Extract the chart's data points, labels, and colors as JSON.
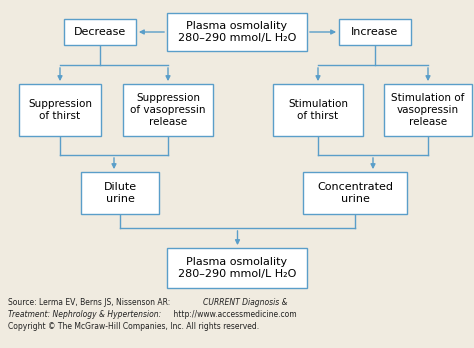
{
  "bg_color": "#f0ebe0",
  "box_color": "#ffffff",
  "box_edge_color": "#5a9ec9",
  "arrow_color": "#5a9ec9",
  "text_color": "#000000",
  "source_line1": "Source: Lerma EV, Berns JS, Nissenson AR: ",
  "source_line1_italic": "CURRENT Diagnosis &",
  "source_line2_italic": "Treatment: Nephrology & Hypertension:",
  "source_line2": " http://www.accessmedicine.com",
  "source_line3": "Copyright © The McGraw-Hill Companies, Inc. All rights reserved."
}
